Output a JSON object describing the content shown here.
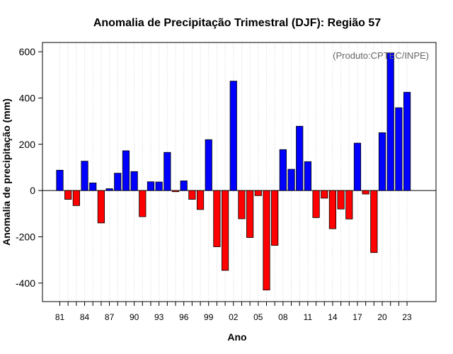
{
  "chart_data": {
    "type": "bar",
    "title": "Anomalia de Precipitação Trimestral (DJF): Região 57",
    "xlabel": "Ano",
    "ylabel": "Anomalia de precipitação (mm)",
    "credit": "(Produto:CPTEC/INPE)",
    "ylim": [
      -480,
      640
    ],
    "yticks": [
      -400,
      -200,
      0,
      200,
      400,
      600
    ],
    "ytick_labels": [
      "-400",
      "-200",
      "0",
      "200",
      "400",
      "600"
    ],
    "xtick_labels": [
      "81",
      "84",
      "87",
      "90",
      "93",
      "96",
      "99",
      "02",
      "05",
      "08",
      "11",
      "14",
      "17",
      "20",
      "23"
    ],
    "grid": true,
    "positive_color": "#0000ff",
    "negative_color": "#ff0000",
    "categories": [
      "81",
      "82",
      "83",
      "84",
      "85",
      "86",
      "87",
      "88",
      "89",
      "90",
      "91",
      "92",
      "93",
      "94",
      "95",
      "96",
      "97",
      "98",
      "99",
      "00",
      "01",
      "02",
      "03",
      "04",
      "05",
      "06",
      "07",
      "08",
      "09",
      "10",
      "11",
      "12",
      "13",
      "14",
      "15",
      "16",
      "17",
      "18",
      "19",
      "20",
      "21",
      "22",
      "23"
    ],
    "values": [
      88,
      -38,
      -65,
      127,
      33,
      -140,
      8,
      75,
      172,
      82,
      -113,
      38,
      37,
      165,
      -5,
      42,
      -38,
      -82,
      220,
      -243,
      -345,
      473,
      -122,
      -203,
      -22,
      -430,
      -237,
      177,
      92,
      278,
      125,
      -117,
      -33,
      -165,
      -80,
      -123,
      205,
      -15,
      -268,
      250,
      595,
      358,
      425
    ]
  }
}
